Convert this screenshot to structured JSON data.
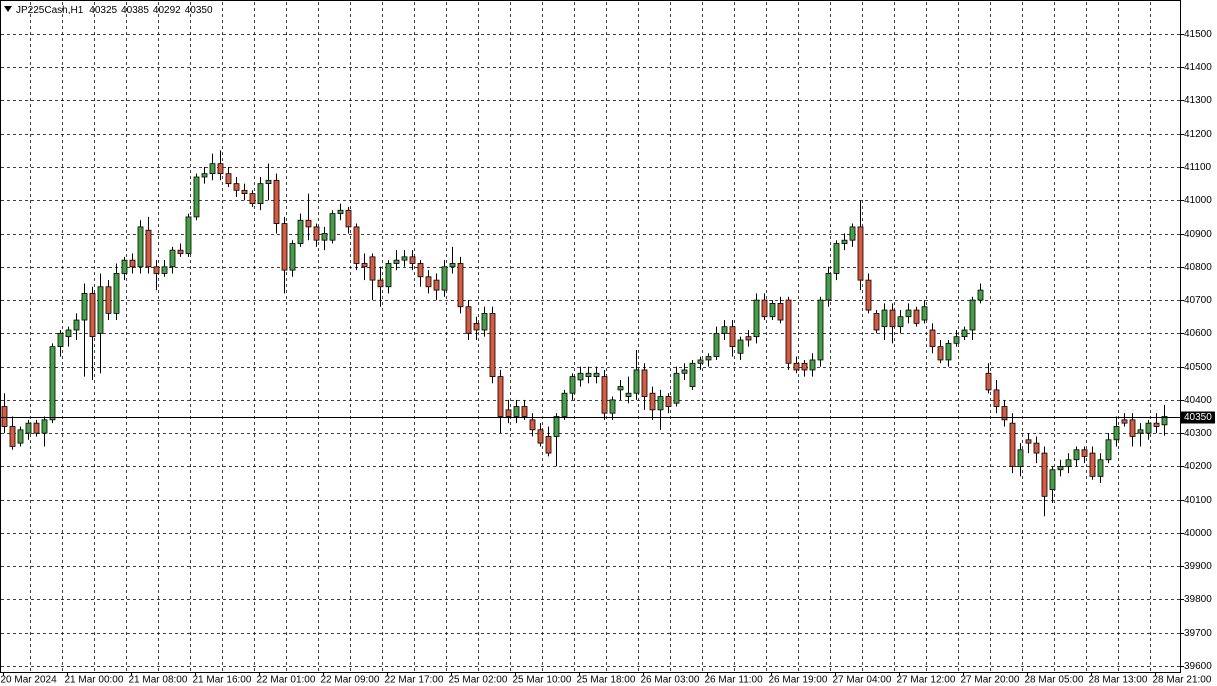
{
  "chart_data": {
    "type": "candlestick",
    "symbol": "JP225Cash,H1",
    "ylim": [
      39582,
      41596
    ],
    "yticks": [
      39600,
      39700,
      39800,
      39900,
      40000,
      40100,
      40200,
      40300,
      40400,
      40500,
      40600,
      40700,
      40800,
      40900,
      41000,
      41100,
      41200,
      41300,
      41400,
      41500
    ],
    "grid": true,
    "up_color": "#45a145",
    "down_color": "#d85a3f",
    "categories": [
      "20 Mar 2024",
      null,
      null,
      null,
      null,
      null,
      null,
      null,
      "21 Mar 00:00",
      null,
      null,
      null,
      null,
      null,
      null,
      null,
      "21 Mar 08:00",
      null,
      null,
      null,
      null,
      null,
      null,
      null,
      "21 Mar 16:00",
      null,
      null,
      null,
      null,
      null,
      null,
      null,
      "22 Mar 01:00",
      null,
      null,
      null,
      null,
      null,
      null,
      null,
      "22 Mar 09:00",
      null,
      null,
      null,
      null,
      null,
      null,
      null,
      "22 Mar 17:00",
      null,
      null,
      null,
      null,
      null,
      null,
      null,
      "25 Mar 02:00",
      null,
      null,
      null,
      null,
      null,
      null,
      null,
      "25 Mar 10:00",
      null,
      null,
      null,
      null,
      null,
      null,
      null,
      "25 Mar 18:00",
      null,
      null,
      null,
      null,
      null,
      null,
      null,
      "26 Mar 03:00",
      null,
      null,
      null,
      null,
      null,
      null,
      null,
      "26 Mar 11:00",
      null,
      null,
      null,
      null,
      null,
      null,
      null,
      "26 Mar 19:00",
      null,
      null,
      null,
      null,
      null,
      null,
      null,
      "27 Mar 04:00",
      null,
      null,
      null,
      null,
      null,
      null,
      null,
      "27 Mar 12:00",
      null,
      null,
      null,
      null,
      null,
      null,
      null,
      "27 Mar 20:00",
      null,
      null,
      null,
      null,
      null,
      null,
      null,
      "28 Mar 05:00",
      null,
      null,
      null,
      null,
      null,
      null,
      null,
      "28 Mar 13:00",
      null,
      null,
      null,
      null,
      null,
      null,
      null,
      "28 Mar 21:00",
      null
    ],
    "candles": [
      [
        40380,
        40420,
        40300,
        40320
      ],
      [
        40320,
        40350,
        40250,
        40260
      ],
      [
        40270,
        40320,
        40260,
        40310
      ],
      [
        40300,
        40340,
        40280,
        40330
      ],
      [
        40330,
        40340,
        40290,
        40300
      ],
      [
        40300,
        40350,
        40260,
        40340
      ],
      [
        40340,
        40570,
        40330,
        40560
      ],
      [
        40560,
        40610,
        40530,
        40600
      ],
      [
        40590,
        40620,
        40560,
        40610
      ],
      [
        40610,
        40660,
        40580,
        40640
      ],
      [
        40640,
        40750,
        40470,
        40720
      ],
      [
        40720,
        40740,
        40460,
        40590
      ],
      [
        40600,
        40780,
        40480,
        40740
      ],
      [
        40740,
        40760,
        40640,
        40660
      ],
      [
        40660,
        40810,
        40640,
        40780
      ],
      [
        40780,
        40830,
        40760,
        40820
      ],
      [
        40820,
        40840,
        40780,
        40800
      ],
      [
        40800,
        40940,
        40780,
        40920
      ],
      [
        40910,
        40950,
        40780,
        40800
      ],
      [
        40800,
        40820,
        40730,
        40780
      ],
      [
        40780,
        40820,
        40770,
        40800
      ],
      [
        40800,
        40860,
        40780,
        40850
      ],
      [
        40850,
        40870,
        40830,
        40840
      ],
      [
        40840,
        40960,
        40830,
        40950
      ],
      [
        40950,
        41080,
        40940,
        41070
      ],
      [
        41070,
        41100,
        41050,
        41080
      ],
      [
        41080,
        41140,
        41060,
        41110
      ],
      [
        41110,
        41150,
        41060,
        41080
      ],
      [
        41080,
        41100,
        41040,
        41050
      ],
      [
        41050,
        41070,
        41010,
        41030
      ],
      [
        41030,
        41050,
        41000,
        41020
      ],
      [
        41020,
        41030,
        40980,
        40990
      ],
      [
        40990,
        41070,
        40970,
        41050
      ],
      [
        41050,
        41110,
        41000,
        41060
      ],
      [
        41060,
        41080,
        40900,
        40930
      ],
      [
        40930,
        40950,
        40720,
        40790
      ],
      [
        40790,
        40880,
        40770,
        40870
      ],
      [
        40870,
        40960,
        40860,
        40940
      ],
      [
        40940,
        41020,
        40880,
        40920
      ],
      [
        40920,
        40930,
        40860,
        40880
      ],
      [
        40880,
        40920,
        40850,
        40900
      ],
      [
        40880,
        40970,
        40870,
        40960
      ],
      [
        40960,
        40990,
        40940,
        40970
      ],
      [
        40970,
        40980,
        40900,
        40920
      ],
      [
        40920,
        40930,
        40790,
        40810
      ],
      [
        40810,
        40840,
        40760,
        40800
      ],
      [
        40830,
        40840,
        40700,
        40760
      ],
      [
        40760,
        40800,
        40680,
        40740
      ],
      [
        40740,
        40820,
        40720,
        40810
      ],
      [
        40810,
        40850,
        40790,
        40820
      ],
      [
        40820,
        40850,
        40800,
        40830
      ],
      [
        40830,
        40850,
        40790,
        40810
      ],
      [
        40810,
        40820,
        40740,
        40770
      ],
      [
        40770,
        40790,
        40720,
        40740
      ],
      [
        40760,
        40780,
        40700,
        40730
      ],
      [
        40730,
        40820,
        40710,
        40800
      ],
      [
        40800,
        40860,
        40780,
        40810
      ],
      [
        40810,
        40830,
        40660,
        40680
      ],
      [
        40680,
        40700,
        40580,
        40600
      ],
      [
        40630,
        40650,
        40580,
        40610
      ],
      [
        40610,
        40680,
        40590,
        40660
      ],
      [
        40660,
        40680,
        40450,
        40470
      ],
      [
        40470,
        40490,
        40300,
        40350
      ],
      [
        40370,
        40400,
        40330,
        40350
      ],
      [
        40350,
        40400,
        40330,
        40380
      ],
      [
        40380,
        40400,
        40340,
        40350
      ],
      [
        40340,
        40360,
        40290,
        40310
      ],
      [
        40310,
        40330,
        40260,
        40270
      ],
      [
        40290,
        40320,
        40230,
        40240
      ],
      [
        40290,
        40360,
        40200,
        40350
      ],
      [
        40350,
        40430,
        40340,
        40420
      ],
      [
        40420,
        40480,
        40400,
        40470
      ],
      [
        40460,
        40500,
        40440,
        40480
      ],
      [
        40470,
        40500,
        40450,
        40480
      ],
      [
        40470,
        40500,
        40450,
        40480
      ],
      [
        40470,
        40490,
        40340,
        40360
      ],
      [
        40360,
        40410,
        40340,
        40400
      ],
      [
        40430,
        40460,
        40400,
        40440
      ],
      [
        40410,
        40470,
        40390,
        40420
      ],
      [
        40420,
        40550,
        40400,
        40490
      ],
      [
        40490,
        40510,
        40370,
        40410
      ],
      [
        40420,
        40440,
        40340,
        40370
      ],
      [
        40370,
        40430,
        40310,
        40410
      ],
      [
        40410,
        40420,
        40360,
        40380
      ],
      [
        40390,
        40500,
        40380,
        40480
      ],
      [
        40480,
        40510,
        40460,
        40490
      ],
      [
        40440,
        40520,
        40430,
        40510
      ],
      [
        40510,
        40530,
        40490,
        40520
      ],
      [
        40520,
        40540,
        40500,
        40530
      ],
      [
        40530,
        40620,
        40520,
        40600
      ],
      [
        40600,
        40640,
        40580,
        40620
      ],
      [
        40620,
        40640,
        40530,
        40560
      ],
      [
        40540,
        40590,
        40520,
        40580
      ],
      [
        40590,
        40610,
        40560,
        40580
      ],
      [
        40590,
        40720,
        40570,
        40700
      ],
      [
        40700,
        40720,
        40640,
        40650
      ],
      [
        40650,
        40700,
        40640,
        40690
      ],
      [
        40690,
        40710,
        40630,
        40640
      ],
      [
        40700,
        40710,
        40490,
        40510
      ],
      [
        40510,
        40530,
        40480,
        40490
      ],
      [
        40510,
        40520,
        40470,
        40490
      ],
      [
        40490,
        40540,
        40470,
        40520
      ],
      [
        40520,
        40710,
        40500,
        40700
      ],
      [
        40700,
        40800,
        40680,
        40780
      ],
      [
        40780,
        40880,
        40760,
        40870
      ],
      [
        40870,
        40900,
        40850,
        40880
      ],
      [
        40880,
        40930,
        40860,
        40920
      ],
      [
        40920,
        41000,
        40730,
        40760
      ],
      [
        40760,
        40780,
        40660,
        40670
      ],
      [
        40660,
        40670,
        40600,
        40610
      ],
      [
        40620,
        40690,
        40580,
        40670
      ],
      [
        40670,
        40690,
        40570,
        40620
      ],
      [
        40620,
        40670,
        40600,
        40650
      ],
      [
        40650,
        40690,
        40630,
        40670
      ],
      [
        40670,
        40680,
        40620,
        40630
      ],
      [
        40640,
        40700,
        40630,
        40680
      ],
      [
        40610,
        40630,
        40540,
        40560
      ],
      [
        40560,
        40580,
        40510,
        40520
      ],
      [
        40520,
        40580,
        40500,
        40570
      ],
      [
        40570,
        40610,
        40560,
        40590
      ],
      [
        40590,
        40620,
        40580,
        40610
      ],
      [
        40610,
        40710,
        40580,
        40700
      ],
      [
        40700,
        40750,
        40690,
        40730
      ],
      [
        40480,
        40510,
        40420,
        40430
      ],
      [
        40430,
        40460,
        40360,
        40380
      ],
      [
        40380,
        40400,
        40320,
        40340
      ],
      [
        40330,
        40360,
        40180,
        40200
      ],
      [
        40200,
        40270,
        40170,
        40250
      ],
      [
        40280,
        40300,
        40240,
        40270
      ],
      [
        40270,
        40290,
        40210,
        40240
      ],
      [
        40240,
        40260,
        40050,
        40110
      ],
      [
        40130,
        40200,
        40090,
        40190
      ],
      [
        40190,
        40220,
        40170,
        40200
      ],
      [
        40200,
        40240,
        40180,
        40220
      ],
      [
        40220,
        40260,
        40200,
        40250
      ],
      [
        40250,
        40260,
        40210,
        40230
      ],
      [
        40240,
        40260,
        40160,
        40170
      ],
      [
        40170,
        40240,
        40150,
        40220
      ],
      [
        40220,
        40300,
        40210,
        40280
      ],
      [
        40280,
        40350,
        40260,
        40320
      ],
      [
        40340,
        40360,
        40320,
        40330
      ],
      [
        40340,
        40360,
        40260,
        40290
      ],
      [
        40300,
        40330,
        40260,
        40310
      ],
      [
        40300,
        40340,
        40280,
        40330
      ],
      [
        40330,
        40360,
        40300,
        40320
      ],
      [
        40325,
        40385,
        40292,
        40350
      ]
    ]
  }
}
